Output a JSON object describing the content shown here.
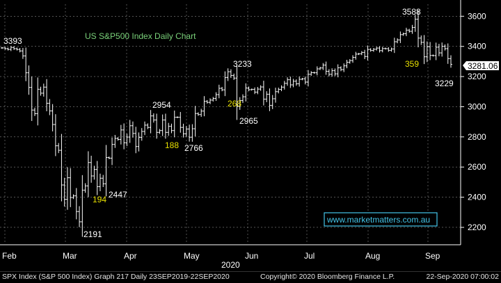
{
  "chart_data": {
    "type": "ohlc",
    "title": "US S&P500 Index Daily Chart",
    "watermark": "www.marketmatters.com.au",
    "year_label": "2020",
    "x_tick_labels": [
      "Feb",
      "Mar",
      "Apr",
      "May",
      "Jun",
      "Jul",
      "Aug",
      "Sep"
    ],
    "y_tick_labels": [
      "2200",
      "2400",
      "2600",
      "2800",
      "3000",
      "3200",
      "3400",
      "3600"
    ],
    "ylim": [
      2140,
      3680
    ],
    "last_price": "3281.06",
    "annotations": [
      {
        "text": "3393",
        "color": "white"
      },
      {
        "text": "2191",
        "color": "white"
      },
      {
        "text": "2447",
        "color": "white"
      },
      {
        "text": "194",
        "color": "yellow"
      },
      {
        "text": "2954",
        "color": "white"
      },
      {
        "text": "188",
        "color": "yellow"
      },
      {
        "text": "2766",
        "color": "white"
      },
      {
        "text": "3233",
        "color": "white"
      },
      {
        "text": "268",
        "color": "yellow"
      },
      {
        "text": "2965",
        "color": "white"
      },
      {
        "text": "3588",
        "color": "white"
      },
      {
        "text": "359",
        "color": "yellow"
      },
      {
        "text": "3229",
        "color": "white"
      }
    ],
    "series": [
      {
        "close": [
          3390,
          3385,
          3380,
          3393,
          3385,
          3380,
          3370,
          3337,
          3225,
          3128,
          2978,
          2954,
          3116,
          3090,
          3130,
          3023,
          2972,
          2882,
          2741,
          2711,
          2481,
          2386,
          2529,
          2398,
          2409,
          2305,
          2237,
          2447,
          2475,
          2630,
          2541,
          2584,
          2470,
          2526,
          2489,
          2663,
          2659,
          2750,
          2790,
          2783,
          2846,
          2761,
          2799,
          2874,
          2823,
          2736,
          2797,
          2836,
          2878,
          2863,
          2939,
          2912,
          2830,
          2842,
          2912,
          2830,
          2870,
          2842,
          2930,
          2930,
          2863,
          2820,
          2852,
          2798,
          2854,
          2955,
          2948,
          2971,
          3036,
          3029,
          3044,
          3055,
          3080,
          3122,
          3112,
          3193,
          3232,
          3207,
          3190,
          3002,
          3041,
          3066,
          3124,
          3113,
          3115,
          3097,
          3117,
          3131,
          3050,
          3083,
          3009,
          3053,
          3100,
          3115,
          3130,
          3155,
          3179,
          3145,
          3169,
          3152,
          3182,
          3185,
          3163,
          3215,
          3226,
          3225,
          3251,
          3257,
          3276,
          3235,
          3215,
          3239,
          3218,
          3258,
          3246,
          3271,
          3295,
          3306,
          3327,
          3349,
          3351,
          3360,
          3333,
          3380,
          3373,
          3381,
          3389,
          3372,
          3386,
          3385,
          3374,
          3383,
          3431,
          3443,
          3478,
          3484,
          3508,
          3500,
          3526,
          3580,
          3455,
          3427,
          3331,
          3398,
          3340,
          3339,
          3395,
          3357,
          3401,
          3385,
          3319,
          3281
        ]
      }
    ]
  },
  "footer": {
    "left": "SPX Index (S&P 500 Index) Graph 217  Daily 23SEP2019-22SEP2020",
    "middle": "Copyright© 2020 Bloomberg Finance L.P.",
    "right": "22-Sep-2020 07:00:02"
  },
  "colors": {
    "background": "#000000",
    "text": "#ffffff",
    "bars": "#ffffff",
    "title": "#7ad27a",
    "yellow_labels": "#e8e000",
    "grid": "#888888"
  }
}
